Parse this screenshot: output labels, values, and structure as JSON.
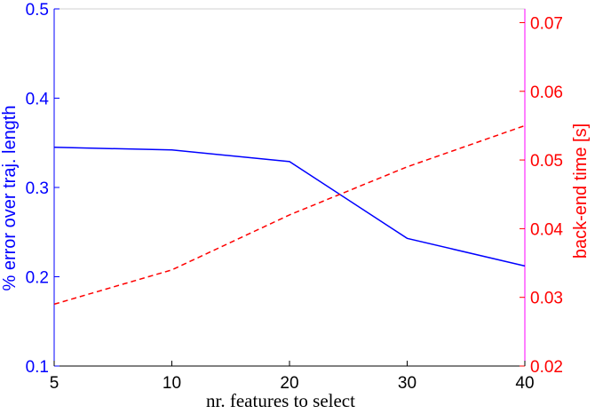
{
  "chart_data": {
    "type": "line",
    "x_categories": [
      "5",
      "10",
      "20",
      "30",
      "40"
    ],
    "xlabel": "nr. features to select",
    "y_left": {
      "label": "% error over traj. length",
      "ylim": [
        0.1,
        0.5
      ],
      "ticks": [
        "0.1",
        "0.2",
        "0.3",
        "0.4",
        "0.5"
      ],
      "color": "#0000ff"
    },
    "y_right": {
      "label": "back-end time [s]",
      "ylim": [
        0.02,
        0.072
      ],
      "ticks": [
        "0.02",
        "0.03",
        "0.04",
        "0.05",
        "0.06",
        "0.07"
      ],
      "color": "#ff0000"
    },
    "series": [
      {
        "axis": "left",
        "style": "solid",
        "color": "#0000ff",
        "values": [
          0.345,
          0.342,
          0.329,
          0.243,
          0.212
        ]
      },
      {
        "axis": "right",
        "style": "dashed",
        "color": "#ff0000",
        "values": [
          0.029,
          0.034,
          0.042,
          0.049,
          0.055
        ]
      }
    ],
    "grid": false,
    "left_axis_color": "#0000ff",
    "right_axis_color": "#ff00ff"
  }
}
